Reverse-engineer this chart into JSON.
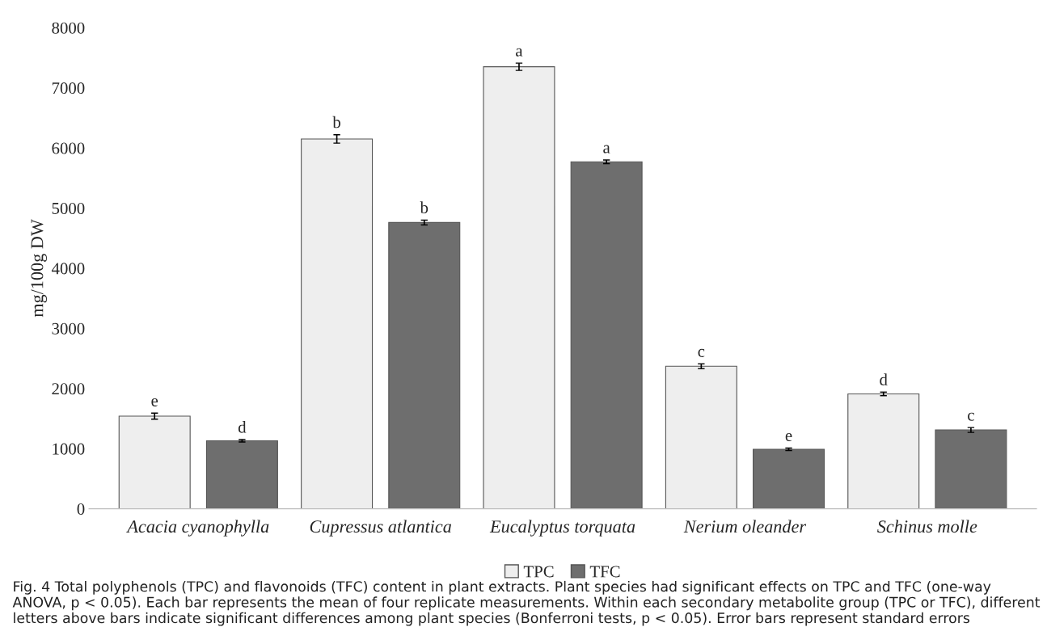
{
  "chart_data": {
    "type": "bar",
    "ylabel": "mg/100g DW",
    "categories": [
      "Acacia cyanophylla",
      "Cupressus atlantica",
      "Eucalyptus torquata",
      "Nerium oleander",
      "Schinus molle"
    ],
    "series": [
      {
        "name": "TPC",
        "color": "#eeeeee",
        "values": [
          1540,
          6150,
          7350,
          2370,
          1910
        ],
        "errors": [
          50,
          70,
          60,
          40,
          30
        ],
        "value_labels": [
          "e",
          "b",
          "a",
          "c",
          "d"
        ]
      },
      {
        "name": "TFC",
        "color": "#6e6e6e",
        "values": [
          1130,
          4760,
          5770,
          990,
          1310
        ],
        "errors": [
          20,
          40,
          30,
          20,
          40
        ],
        "value_labels": [
          "d",
          "b",
          "a",
          "e",
          "c"
        ]
      }
    ],
    "ylim": [
      0,
      8000
    ],
    "yticks": [
      0,
      1000,
      2000,
      3000,
      4000,
      5000,
      6000,
      7000,
      8000
    ],
    "grid": false,
    "legend": "bottom",
    "annotations": [
      "Fig. 4 Total polyphenols (TPC) and flavonoids (TFC) content in plant extracts. Plant species had significant effects on TPC and TFC (one-way ANOVA, p < 0.05). Each bar represents the mean of four replicate measurements. Within each secondary metabolite group (TPC or TFC), different letters above bars indicate significant differences among plant species (Bonferroni tests, p < 0.05). Error bars represent standard errors"
    ]
  }
}
